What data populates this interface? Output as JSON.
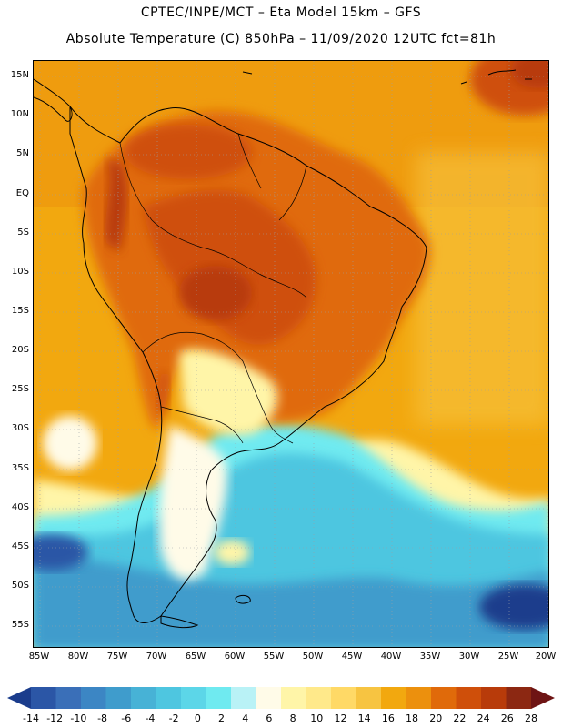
{
  "header": {
    "line1": "CPTEC/INPE/MCT –  Eta Model 15km – GFS",
    "line2": "Absolute Temperature (C) 850hPa – 11/09/2020 12UTC fct=81h"
  },
  "map": {
    "lat_labels": [
      "15N",
      "10N",
      "5N",
      "EQ",
      "5S",
      "10S",
      "15S",
      "20S",
      "25S",
      "30S",
      "35S",
      "40S",
      "45S",
      "50S",
      "55S"
    ],
    "lon_labels": [
      "85W",
      "80W",
      "75W",
      "70W",
      "65W",
      "60W",
      "55W",
      "50W",
      "45W",
      "40W",
      "35W",
      "30W",
      "25W",
      "20W"
    ],
    "field_description": "Temperature at 850hPa over South America"
  },
  "colorbar": {
    "labels": [
      "-14",
      "-12",
      "-10",
      "-8",
      "-6",
      "-4",
      "-2",
      "0",
      "2",
      "4",
      "6",
      "8",
      "10",
      "12",
      "14",
      "16",
      "18",
      "20",
      "22",
      "24",
      "26",
      "28"
    ],
    "colors": [
      "#1a3c8c",
      "#2b56a6",
      "#3a6fb8",
      "#3c86c4",
      "#3f9ccc",
      "#47b2d6",
      "#4ec6e0",
      "#5cd6e8",
      "#6feaf0",
      "#b9f2f6",
      "#fffbe8",
      "#fff5a8",
      "#ffe98a",
      "#ffd966",
      "#f7c441",
      "#f2a80f",
      "#ec900d",
      "#e06a0a",
      "#cf4f0a",
      "#b83b0a",
      "#8c2812",
      "#6e1414"
    ]
  }
}
